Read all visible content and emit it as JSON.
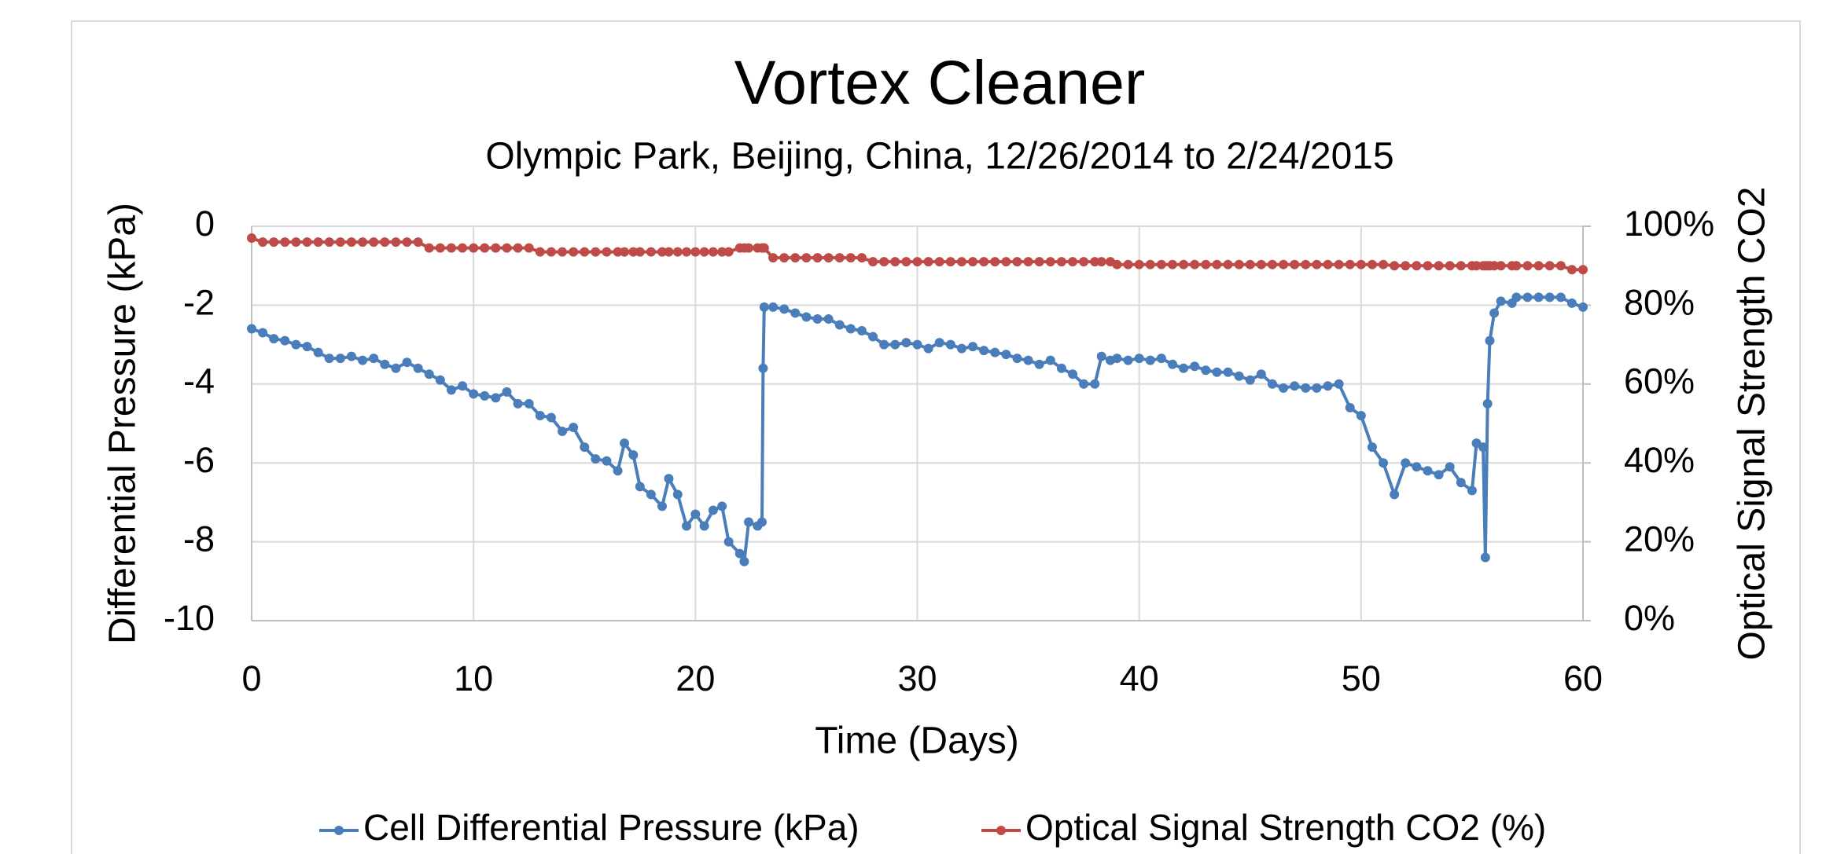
{
  "chart_data": {
    "type": "line",
    "title": "Vortex Cleaner",
    "subtitle": "Olympic Park, Beijing, China, 12/26/2014 to 2/24/2015",
    "x_label": "Time (Days)",
    "y_label": "Differential Pressure (kPa)",
    "y2_label": "Optical Signal Strength CO2",
    "xlim": [
      0,
      60
    ],
    "xticks": [
      0,
      10,
      20,
      30,
      40,
      50,
      60
    ],
    "ylim": [
      -10,
      0
    ],
    "yticks": [
      -10,
      -8,
      -6,
      -4,
      -2,
      0
    ],
    "y2lim": [
      0,
      100
    ],
    "y2ticks": [
      {
        "value": 0,
        "label": "0%"
      },
      {
        "value": 20,
        "label": "20%"
      },
      {
        "value": 40,
        "label": "40%"
      },
      {
        "value": 60,
        "label": "60%"
      },
      {
        "value": 80,
        "label": "80%"
      },
      {
        "value": 100,
        "label": "100%"
      }
    ],
    "grid": true,
    "legend": "bottom",
    "x": [
      0,
      0.5,
      1,
      1.5,
      2,
      2.5,
      3,
      3.5,
      4,
      4.5,
      5,
      5.5,
      6,
      6.5,
      7,
      7.5,
      8,
      8.5,
      9,
      9.5,
      10,
      10.5,
      11,
      11.5,
      12,
      12.5,
      13,
      13.5,
      14,
      14.5,
      15,
      15.5,
      16,
      16.5,
      16.8,
      17.2,
      17.5,
      18,
      18.5,
      18.8,
      19.2,
      19.6,
      20,
      20.4,
      20.8,
      21.2,
      21.5,
      22,
      22.2,
      22.4,
      22.8,
      23,
      23.05,
      23.1,
      23.5,
      24,
      24.5,
      25,
      25.5,
      26,
      26.5,
      27,
      27.5,
      28,
      28.5,
      29,
      29.5,
      30,
      30.5,
      31,
      31.5,
      32,
      32.5,
      33,
      33.5,
      34,
      34.5,
      35,
      35.5,
      36,
      36.5,
      37,
      37.5,
      38,
      38.3,
      38.7,
      39,
      39.5,
      40,
      40.5,
      41,
      41.5,
      42,
      42.5,
      43,
      43.5,
      44,
      44.5,
      45,
      45.5,
      46,
      46.5,
      47,
      47.5,
      48,
      48.5,
      49,
      49.5,
      50,
      50.5,
      51,
      51.5,
      52,
      52.5,
      53,
      53.5,
      54,
      54.5,
      55,
      55.2,
      55.5,
      55.6,
      55.7,
      55.8,
      56,
      56.3,
      56.8,
      57,
      57.5,
      58,
      58.5,
      59,
      59.5,
      60
    ],
    "series": [
      {
        "name": "Cell Differential Pressure (kPa)",
        "color": "#4a7ebb",
        "values": [
          -2.6,
          -2.7,
          -2.85,
          -2.9,
          -3.0,
          -3.05,
          -3.2,
          -3.35,
          -3.35,
          -3.3,
          -3.4,
          -3.35,
          -3.5,
          -3.6,
          -3.45,
          -3.6,
          -3.75,
          -3.9,
          -4.15,
          -4.05,
          -4.25,
          -4.3,
          -4.35,
          -4.2,
          -4.5,
          -4.5,
          -4.8,
          -4.85,
          -5.2,
          -5.1,
          -5.6,
          -5.9,
          -5.95,
          -6.2,
          -5.5,
          -5.8,
          -6.6,
          -6.8,
          -7.1,
          -6.4,
          -6.8,
          -7.6,
          -7.3,
          -7.6,
          -7.2,
          -7.1,
          -8.0,
          -8.3,
          -8.5,
          -7.5,
          -7.6,
          -7.5,
          -3.6,
          -2.05,
          -2.05,
          -2.1,
          -2.2,
          -2.3,
          -2.35,
          -2.35,
          -2.5,
          -2.6,
          -2.65,
          -2.8,
          -3.0,
          -3.0,
          -2.95,
          -3.0,
          -3.1,
          -2.95,
          -3.0,
          -3.1,
          -3.05,
          -3.15,
          -3.2,
          -3.25,
          -3.35,
          -3.4,
          -3.5,
          -3.4,
          -3.6,
          -3.75,
          -4.0,
          -4.0,
          -3.3,
          -3.4,
          -3.35,
          -3.4,
          -3.35,
          -3.4,
          -3.35,
          -3.5,
          -3.6,
          -3.55,
          -3.65,
          -3.7,
          -3.7,
          -3.8,
          -3.9,
          -3.75,
          -4.0,
          -4.1,
          -4.05,
          -4.1,
          -4.1,
          -4.05,
          -4.0,
          -4.6,
          -4.8,
          -5.6,
          -6.0,
          -6.8,
          -6.0,
          -6.1,
          -6.2,
          -6.3,
          -6.1,
          -6.5,
          -6.7,
          -5.5,
          -5.6,
          -8.4,
          -4.5,
          -2.9,
          -2.2,
          -1.9,
          -1.95,
          -1.8,
          -1.8,
          -1.8,
          -1.8,
          -1.8,
          -1.95,
          -2.05
        ]
      },
      {
        "name": "Optical Signal Strength CO2 (%)",
        "color": "#be4b48",
        "axis": "y2",
        "values": [
          97,
          96,
          96,
          96,
          96,
          96,
          96,
          96,
          96,
          96,
          96,
          96,
          96,
          96,
          96,
          96,
          94.5,
          94.5,
          94.5,
          94.5,
          94.5,
          94.5,
          94.5,
          94.5,
          94.5,
          94.5,
          93.5,
          93.5,
          93.5,
          93.5,
          93.5,
          93.5,
          93.5,
          93.5,
          93.5,
          93.5,
          93.5,
          93.5,
          93.5,
          93.5,
          93.5,
          93.5,
          93.5,
          93.5,
          93.5,
          93.5,
          93.5,
          94.5,
          94.5,
          94.5,
          94.5,
          94.5,
          94.5,
          94.5,
          92,
          92,
          92,
          92,
          92,
          92,
          92,
          92,
          92,
          91,
          91,
          91,
          91,
          91,
          91,
          91,
          91,
          91,
          91,
          91,
          91,
          91,
          91,
          91,
          91,
          91,
          91,
          91,
          91,
          91,
          91,
          91,
          90.3,
          90.3,
          90.3,
          90.3,
          90.3,
          90.3,
          90.3,
          90.3,
          90.3,
          90.3,
          90.3,
          90.3,
          90.3,
          90.3,
          90.3,
          90.3,
          90.3,
          90.3,
          90.3,
          90.3,
          90.3,
          90.3,
          90.3,
          90.3,
          90.3,
          90,
          90,
          90,
          90,
          90,
          90,
          90,
          90,
          90,
          90,
          90,
          90,
          90,
          90,
          90,
          90,
          90,
          90,
          90,
          90,
          90,
          89,
          89
        ]
      }
    ]
  }
}
